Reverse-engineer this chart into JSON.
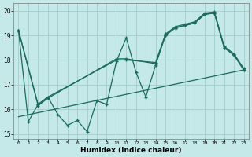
{
  "title": "",
  "xlabel": "Humidex (Indice chaleur)",
  "bg_color": "#c5e8e8",
  "grid_color": "#a8d0d0",
  "line_color": "#1a6b5a",
  "xlim": [
    -0.5,
    23.5
  ],
  "ylim": [
    14.8,
    20.3
  ],
  "xticks": [
    0,
    1,
    2,
    3,
    4,
    5,
    6,
    7,
    8,
    9,
    10,
    11,
    12,
    13,
    14,
    15,
    16,
    17,
    18,
    19,
    20,
    21,
    22,
    23
  ],
  "yticks": [
    15,
    16,
    17,
    18,
    19,
    20
  ],
  "line_zigzag": [
    19.2,
    15.5,
    16.2,
    16.5,
    15.8,
    15.35,
    15.55,
    15.1,
    16.35,
    16.2,
    17.95,
    18.9,
    17.5,
    16.5,
    17.8,
    19.0,
    19.3,
    19.4,
    19.5,
    19.85,
    19.9,
    18.5,
    18.2,
    17.6
  ],
  "line_smooth1_x": [
    0,
    2,
    3,
    10,
    11,
    14,
    15,
    16,
    17,
    18,
    19,
    20,
    21,
    22,
    23
  ],
  "line_smooth1_y": [
    19.2,
    16.2,
    16.5,
    18.0,
    18.0,
    17.9,
    19.05,
    19.35,
    19.45,
    19.55,
    19.9,
    19.95,
    18.55,
    18.25,
    17.65
  ],
  "line_smooth2_x": [
    0,
    2,
    3,
    10,
    11,
    14,
    15,
    16,
    17,
    18,
    19,
    20,
    21,
    22,
    23
  ],
  "line_smooth2_y": [
    19.2,
    16.15,
    16.45,
    18.05,
    18.05,
    17.85,
    19.0,
    19.3,
    19.4,
    19.5,
    19.85,
    19.9,
    18.5,
    18.2,
    17.6
  ],
  "line_trend_x": [
    0,
    23
  ],
  "line_trend_y": [
    15.7,
    17.6
  ]
}
